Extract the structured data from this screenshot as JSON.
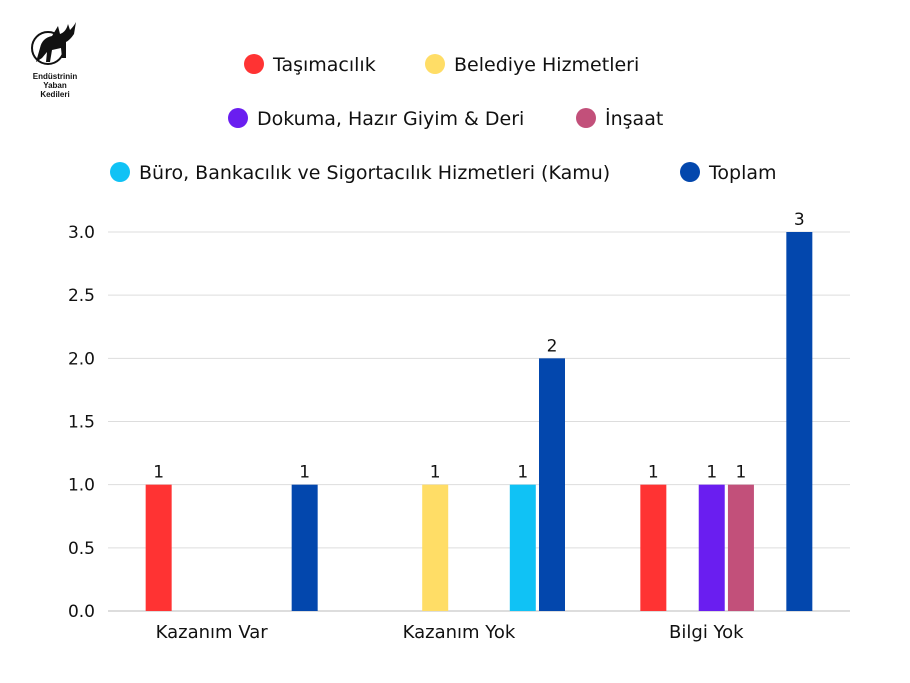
{
  "logo": {
    "lines": [
      "Endüstrinin",
      "Yaban",
      "Kedileri"
    ]
  },
  "chart_data": {
    "type": "bar",
    "categories": [
      "Kazanım Var",
      "Kazanım Yok",
      "Bilgi Yok"
    ],
    "series": [
      {
        "name": "Taşımacılık",
        "color": "#ff3333",
        "values": [
          1,
          null,
          1
        ]
      },
      {
        "name": "Belediye Hizmetleri",
        "color": "#ffdd66",
        "values": [
          null,
          1,
          null
        ]
      },
      {
        "name": "Dokuma, Hazır Giyim & Deri",
        "color": "#6a1ef0",
        "values": [
          null,
          null,
          1
        ]
      },
      {
        "name": "İnşaat",
        "color": "#c2507a",
        "values": [
          null,
          null,
          1
        ]
      },
      {
        "name": "Büro, Bankacılık ve Sigortacılık Hizmetleri (Kamu)",
        "color": "#10c2f5",
        "values": [
          null,
          1,
          null
        ]
      },
      {
        "name": "Toplam",
        "color": "#0347ad",
        "values": [
          1,
          2,
          3
        ]
      }
    ],
    "ylim": [
      0,
      3
    ],
    "yticks": [
      "0.0",
      "0.5",
      "1.0",
      "1.5",
      "2.0",
      "2.5",
      "3.0"
    ],
    "grid": true,
    "legend_position": "top",
    "data_labels": true
  }
}
